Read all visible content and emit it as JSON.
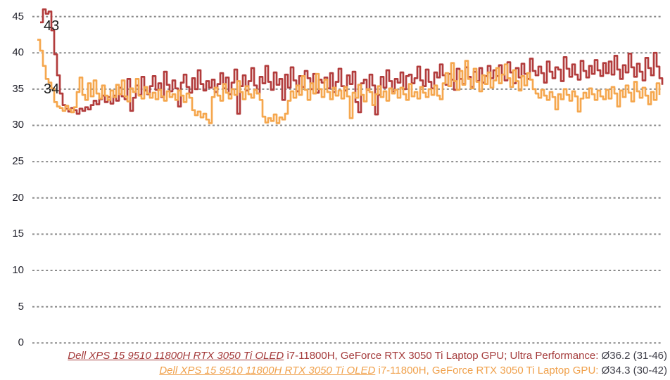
{
  "chart_data": {
    "type": "line",
    "title": "",
    "xlabel": "",
    "ylabel": "",
    "ylim": [
      0,
      47.5
    ],
    "yticks": [
      45,
      40,
      35,
      30,
      25,
      20,
      15,
      10,
      5,
      0
    ],
    "grid": "horizontal-dashed",
    "gridline_color": "#8a8a8a",
    "legend_position": "bottom-right",
    "annotations": [
      {
        "text": "43"
      },
      {
        "text": "34"
      }
    ],
    "series": [
      {
        "name": "Dell XPS 15 9510 11800H RTX 3050 Ti OLED i7-11800H, GeForce RTX 3050 Ti Laptop GPU; Ultra Performance",
        "color": "#b23c3c",
        "average": 36.2,
        "min": 31,
        "max": 46,
        "values": [
          44.2,
          46.0,
          45.4,
          45.7,
          43.1,
          39.8,
          36.9,
          34.4,
          32.8,
          32.3,
          31.9,
          32.4,
          32.1,
          31.6,
          32.3,
          32.0,
          32.5,
          32.2,
          32.8,
          33.4,
          32.9,
          33.6,
          34.1,
          33.2,
          33.9,
          33.0,
          34.1,
          33.4,
          35.2,
          34.0,
          33.6,
          36.4,
          32.0,
          33.8,
          35.5,
          34.2,
          36.7,
          34.8,
          34.3,
          35.4,
          36.8,
          34.9,
          35.8,
          33.9,
          37.4,
          35.6,
          34.7,
          36.2,
          35.1,
          32.6,
          35.9,
          37.0,
          35.3,
          34.5,
          36.5,
          35.0,
          37.6,
          35.7,
          34.8,
          36.1,
          35.2,
          36.3,
          34.6,
          35.7,
          37.2,
          35.1,
          36.6,
          34.3,
          35.9,
          37.7,
          31.6,
          35.4,
          36.9,
          34.8,
          36.1,
          37.9,
          35.5,
          34.4,
          36.7,
          35.8,
          38.2,
          36.0,
          34.9,
          37.3,
          35.6,
          36.4,
          33.5,
          37.0,
          35.2,
          38.0,
          36.2,
          34.7,
          36.8,
          35.3,
          37.5,
          36.5,
          35.0,
          37.1,
          34.5,
          36.3,
          35.9,
          36.6,
          35.1,
          37.2,
          34.6,
          36.0,
          37.8,
          35.4,
          34.8,
          36.9,
          35.7,
          37.4,
          33.2,
          31.8,
          35.8,
          36.3,
          34.9,
          37.0,
          35.5,
          31.5,
          34.2,
          36.7,
          35.2,
          37.6,
          36.1,
          34.7,
          36.4,
          35.9,
          37.3,
          35.0,
          36.8,
          37.0,
          35.8,
          36.5,
          38.1,
          36.2,
          35.4,
          37.7,
          36.0,
          35.1,
          37.3,
          36.6,
          38.4,
          36.9,
          35.6,
          37.1,
          36.3,
          34.9,
          37.8,
          36.4,
          35.7,
          38.0,
          36.7,
          35.3,
          37.4,
          36.1,
          37.9,
          35.9,
          36.8,
          38.2,
          36.5,
          37.6,
          36.8,
          38.3,
          37.0,
          36.2,
          38.7,
          37.3,
          35.8,
          37.9,
          36.6,
          38.5,
          37.1,
          36.4,
          39.2,
          37.5,
          36.9,
          38.1,
          37.2,
          35.9,
          38.8,
          37.4,
          36.5,
          38.0,
          37.7,
          36.1,
          39.4,
          37.8,
          36.7,
          38.4,
          37.0,
          36.3,
          38.9,
          37.5,
          36.6,
          38.2,
          37.1,
          39.0,
          37.6,
          36.8,
          38.6,
          37.2,
          38.8,
          37.0,
          39.6,
          37.7,
          36.4,
          38.3,
          37.3,
          39.9,
          38.0,
          36.7,
          38.5,
          37.4,
          36.2,
          39.3,
          37.9,
          36.9,
          40.0,
          38.1,
          36.5,
          35.6
        ]
      },
      {
        "name": "Dell XPS 15 9510 11800H RTX 3050 Ti OLED i7-11800H, GeForce RTX 3050 Ti Laptop GPU",
        "color": "#f5a74e",
        "average": 34.3,
        "min": 30,
        "max": 42,
        "values": [
          41.8,
          40.3,
          38.2,
          36.4,
          35.9,
          35.1,
          33.2,
          32.6,
          32.4,
          32.0,
          32.7,
          32.2,
          31.8,
          32.5,
          34.6,
          36.6,
          34.2,
          33.5,
          35.8,
          34.0,
          36.2,
          34.4,
          33.7,
          35.5,
          34.1,
          33.5,
          34.8,
          33.9,
          35.6,
          34.3,
          36.2,
          34.0,
          33.3,
          35.1,
          34.6,
          36.4,
          34.1,
          33.7,
          35.3,
          34.4,
          33.8,
          34.5,
          33.6,
          34.9,
          34.0,
          33.4,
          34.7,
          33.9,
          34.3,
          33.5,
          34.8,
          34.1,
          33.2,
          34.4,
          33.8,
          32.1,
          31.4,
          31.9,
          31.1,
          31.6,
          30.8,
          30.3,
          33.9,
          35.2,
          34.1,
          33.4,
          35.7,
          34.5,
          33.7,
          35.0,
          34.2,
          36.1,
          34.6,
          33.6,
          35.4,
          34.3,
          33.8,
          34.9,
          34.4,
          33.5,
          31.2,
          30.4,
          31.0,
          30.6,
          31.5,
          30.3,
          31.1,
          30.8,
          31.6,
          33.4,
          34.7,
          33.8,
          35.5,
          34.2,
          36.8,
          34.9,
          33.5,
          35.8,
          34.4,
          37.1,
          35.0,
          33.9,
          36.3,
          34.6,
          33.6,
          35.2,
          34.1,
          34.8,
          33.7,
          35.3,
          34.0,
          31.0,
          34.5,
          33.8,
          35.6,
          34.2,
          33.3,
          35.0,
          34.6,
          32.8,
          34.3,
          35.4,
          33.9,
          34.7,
          33.4,
          35.1,
          34.4,
          34.9,
          33.8,
          35.2,
          34.3,
          33.5,
          35.7,
          34.0,
          34.6,
          33.7,
          35.3,
          34.5,
          33.9,
          35.0,
          34.2,
          35.5,
          34.1,
          33.6,
          35.8,
          37.2,
          35.4,
          38.6,
          36.1,
          34.9,
          37.5,
          35.6,
          38.9,
          36.4,
          35.1,
          37.8,
          36.0,
          34.7,
          36.9,
          35.7,
          37.3,
          35.2,
          36.2,
          37.9,
          35.8,
          37.0,
          38.4,
          36.5,
          35.3,
          37.6,
          36.1,
          34.8,
          36.8,
          35.5,
          37.2,
          36.3,
          35.0,
          34.4,
          33.8,
          34.9,
          34.1,
          33.5,
          34.6,
          33.9,
          32.2,
          34.3,
          33.6,
          35.0,
          34.2,
          33.4,
          34.7,
          34.0,
          31.9,
          33.7,
          34.5,
          33.8,
          35.1,
          34.3,
          33.5,
          34.8,
          34.0,
          33.6,
          34.9,
          33.7,
          35.3,
          34.4,
          32.6,
          34.8,
          33.9,
          35.5,
          34.5,
          33.3,
          36.0,
          34.7,
          33.8,
          35.2,
          34.1,
          32.9,
          34.6,
          33.5,
          35.8,
          34.2
        ]
      }
    ]
  },
  "legend": {
    "rows": [
      {
        "link": "Dell XPS 15 9510 11800H RTX 3050 Ti OLED",
        "specs": " i7-11800H, GeForce RTX 3050 Ti Laptop GPU; Ultra Performance: ",
        "value": "Ø36.2 (31-46)",
        "color": "#a43a3a",
        "value_color": "#3f3f49"
      },
      {
        "link": "Dell XPS 15 9510 11800H RTX 3050 Ti OLED",
        "specs": " i7-11800H, GeForce RTX 3050 Ti Laptop GPU: ",
        "value": "Ø34.3 (30-42)",
        "color": "#f0a14c",
        "value_color": "#3f3f49"
      }
    ]
  }
}
